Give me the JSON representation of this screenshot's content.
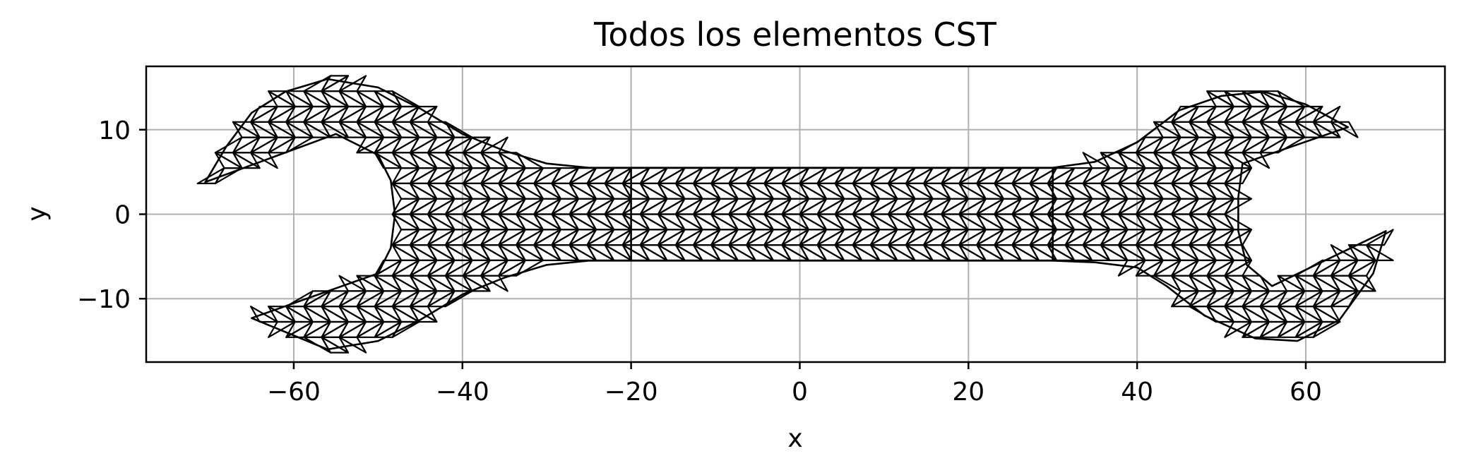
{
  "chart_data": {
    "type": "mesh",
    "title": "Todos los elementos CST",
    "xlabel": "x",
    "ylabel": "y",
    "xlim": [
      -77.5,
      76.5
    ],
    "ylim": [
      -17.5,
      17.5
    ],
    "x_ticks": [
      -60,
      -40,
      -20,
      0,
      20,
      40,
      60
    ],
    "x_tick_labels": [
      "−60",
      "−40",
      "−20",
      "0",
      "20",
      "40",
      "60"
    ],
    "y_ticks": [
      -10,
      0,
      10
    ],
    "y_tick_labels": [
      "−10",
      "0",
      "10"
    ],
    "grid": true,
    "legend": "none",
    "colors": {
      "mesh_edge": "#000000",
      "grid": "#b0b0b0",
      "frame": "#000000",
      "background": "#ffffff"
    },
    "shape": {
      "shank_half_width": 5.5,
      "shank_x_range": [
        -20,
        30
      ],
      "left_head": {
        "outline": [
          [
            -56,
            16
          ],
          [
            -50,
            15
          ],
          [
            -45,
            12.5
          ],
          [
            -40,
            9.5
          ],
          [
            -35,
            7.5
          ],
          [
            -30,
            6
          ],
          [
            -25,
            5.5
          ],
          [
            -20,
            5.5
          ],
          [
            -20,
            -5.5
          ],
          [
            -25,
            -5.5
          ],
          [
            -30,
            -6
          ],
          [
            -35,
            -7.5
          ],
          [
            -40,
            -9.5
          ],
          [
            -45,
            -12.5
          ],
          [
            -50,
            -15
          ],
          [
            -56,
            -16
          ],
          [
            -65,
            -12.3
          ],
          [
            -50,
            -7
          ],
          [
            -48.5,
            -4
          ],
          [
            -48,
            0
          ],
          [
            -48.5,
            4
          ],
          [
            -50,
            7
          ],
          [
            -55,
            9.5
          ],
          [
            -70.5,
            3.8
          ],
          [
            -68,
            8
          ],
          [
            -65,
            12
          ],
          [
            -61,
            14.5
          ]
        ]
      },
      "right_head": {
        "outline": [
          [
            30,
            5.5
          ],
          [
            35,
            6.2
          ],
          [
            40,
            8.5
          ],
          [
            45,
            12.3
          ],
          [
            50,
            14
          ],
          [
            55,
            14.5
          ],
          [
            60,
            13
          ],
          [
            65,
            10.3
          ],
          [
            52.5,
            6
          ],
          [
            52,
            2
          ],
          [
            52,
            -2
          ],
          [
            53,
            -6
          ],
          [
            56,
            -8.5
          ],
          [
            69.5,
            -2
          ],
          [
            68,
            -7
          ],
          [
            64,
            -12.5
          ],
          [
            59,
            -15
          ],
          [
            54,
            -14.7
          ],
          [
            48,
            -12
          ],
          [
            43.5,
            -8.5
          ],
          [
            40,
            -6.3
          ],
          [
            35,
            -5.7
          ],
          [
            30,
            -5.5
          ]
        ]
      }
    }
  }
}
